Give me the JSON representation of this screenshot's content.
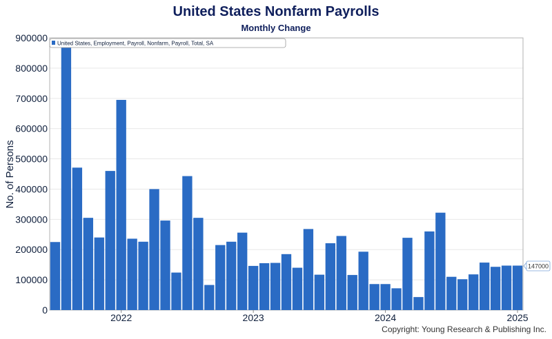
{
  "title": "United States Nonfarm Payrolls",
  "subtitle": "Monthly Change",
  "copyright": "Copyright: Young Research & Publishing Inc.",
  "colors": {
    "bar": "#2a6bc4",
    "title": "#0f1f5c",
    "grid": "#e8e8e8"
  },
  "chart_data": {
    "type": "bar",
    "ylabel": "No. of Persons",
    "ylim": [
      0,
      900000
    ],
    "yticks": [
      0,
      100000,
      200000,
      300000,
      400000,
      500000,
      600000,
      700000,
      800000,
      900000
    ],
    "xtick_labels": [
      "2022",
      "2023",
      "2024",
      "2025"
    ],
    "grid": true,
    "legend_position": "top-left",
    "series": [
      {
        "name": "United States, Employment, Payroll, Nonfarm, Payroll, Total, SA",
        "color": "#2a6bc4",
        "x": [
          "2021-07",
          "2021-08",
          "2021-09",
          "2021-10",
          "2021-11",
          "2021-12",
          "2022-01",
          "2022-02",
          "2022-03",
          "2022-04",
          "2022-05",
          "2022-06",
          "2022-07",
          "2022-08",
          "2022-09",
          "2022-10",
          "2022-11",
          "2022-12",
          "2023-01",
          "2023-02",
          "2023-03",
          "2023-04",
          "2023-05",
          "2023-06",
          "2023-07",
          "2023-08",
          "2023-09",
          "2023-10",
          "2023-11",
          "2023-12",
          "2024-01",
          "2024-02",
          "2024-03",
          "2024-04",
          "2024-05",
          "2024-06",
          "2024-07",
          "2024-08",
          "2024-09",
          "2024-10",
          "2024-11",
          "2024-12",
          "2025-01"
        ],
        "values": [
          225000,
          868000,
          471000,
          305000,
          240000,
          460000,
          695000,
          236000,
          226000,
          400000,
          296000,
          124000,
          443000,
          305000,
          83000,
          215000,
          226000,
          256000,
          146000,
          155000,
          156000,
          185000,
          140000,
          268000,
          117000,
          221000,
          245000,
          116000,
          193000,
          86000,
          86000,
          72000,
          239000,
          43000,
          260000,
          322000,
          110000,
          102000,
          118000,
          157000,
          143000,
          147000,
          147000
        ]
      }
    ],
    "annotations": [
      {
        "text": "147000"
      }
    ]
  }
}
